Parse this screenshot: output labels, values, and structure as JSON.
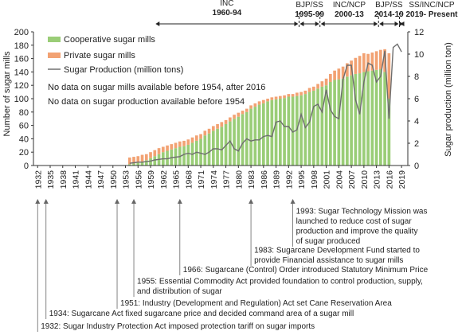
{
  "chart_data": {
    "type": "bar",
    "title": "",
    "xlabel": "",
    "ylabel": "Number of sugar mills",
    "y2label": "Sugar production (million ton)",
    "ylim": [
      0,
      200
    ],
    "y2lim": [
      0,
      12
    ],
    "yticks": [
      0,
      20,
      40,
      60,
      80,
      100,
      120,
      140,
      160,
      180,
      200
    ],
    "y2ticks": [
      0,
      2,
      4,
      6,
      8,
      10,
      12
    ],
    "xticks": [
      "1932",
      "1935",
      "1938",
      "1941",
      "1944",
      "1947",
      "1950",
      "1953",
      "1956",
      "1959",
      "1962",
      "1965",
      "1968",
      "1971",
      "1974",
      "1977",
      "1980",
      "1983",
      "1986",
      "1989",
      "1992",
      "1995",
      "1998",
      "2001",
      "2004",
      "2007",
      "2010",
      "2013",
      "2016",
      "2019"
    ],
    "x": [
      1954,
      1955,
      1956,
      1957,
      1958,
      1959,
      1960,
      1961,
      1962,
      1963,
      1964,
      1965,
      1966,
      1967,
      1968,
      1969,
      1970,
      1971,
      1972,
      1973,
      1974,
      1975,
      1976,
      1977,
      1978,
      1979,
      1980,
      1981,
      1982,
      1983,
      1984,
      1985,
      1986,
      1987,
      1988,
      1989,
      1990,
      1991,
      1992,
      1993,
      1994,
      1995,
      1996,
      1997,
      1998,
      1999,
      2000,
      2001,
      2002,
      2003,
      2004,
      2005,
      2006,
      2007,
      2008,
      2009,
      2010,
      2011,
      2012,
      2013,
      2014,
      2015,
      2016
    ],
    "series": [
      {
        "name": "Cooperative sugar mills",
        "kind": "bar",
        "color": "#9ACD77",
        "values": [
          2,
          3,
          4,
          6,
          8,
          11,
          14,
          17,
          20,
          22,
          24,
          26,
          28,
          29,
          31,
          34,
          37,
          40,
          45,
          48,
          52,
          55,
          58,
          62,
          66,
          70,
          73,
          77,
          80,
          85,
          88,
          91,
          93,
          96,
          98,
          99,
          100,
          101,
          103,
          103,
          104,
          105,
          107,
          110,
          112,
          115,
          118,
          120,
          125,
          128,
          129,
          130,
          133,
          135,
          137,
          138,
          140,
          141,
          142,
          143,
          144,
          140,
          100
        ]
      },
      {
        "name": "Private sugar mills",
        "kind": "bar",
        "color": "#F2A273",
        "values": [
          10,
          10,
          10,
          10,
          9,
          9,
          9,
          9,
          8,
          8,
          8,
          8,
          8,
          8,
          8,
          8,
          8,
          7,
          7,
          7,
          7,
          7,
          7,
          6,
          6,
          6,
          6,
          5,
          5,
          5,
          5,
          5,
          5,
          4,
          4,
          4,
          4,
          4,
          4,
          4,
          5,
          5,
          5,
          6,
          6,
          7,
          8,
          10,
          12,
          14,
          16,
          18,
          20,
          22,
          24,
          26,
          28,
          26,
          27,
          28,
          29,
          34,
          68
        ]
      },
      {
        "name": "Sugar Production (million tons)",
        "kind": "line",
        "axis": "right",
        "color": "#7a7a7a",
        "values": [
          0.2,
          0.25,
          0.3,
          0.3,
          0.35,
          0.4,
          0.5,
          0.55,
          0.6,
          0.6,
          0.7,
          0.75,
          0.8,
          1.0,
          1.1,
          1.0,
          1.2,
          1.1,
          1.0,
          1.2,
          1.5,
          1.5,
          1.4,
          1.8,
          2.2,
          1.5,
          1.3,
          2.0,
          2.4,
          2.2,
          2.3,
          2.3,
          2.6,
          2.7,
          2.6,
          3.9,
          4.0,
          3.5,
          3.5,
          3.0,
          3.2,
          4.6,
          3.4,
          3.9,
          5.3,
          5.5,
          4.8,
          6.8,
          5.0,
          4.4,
          4.2,
          7.7,
          9.0,
          9.0,
          5.9,
          4.6,
          7.5,
          9.2,
          9.0,
          7.5,
          8.0,
          10.3,
          4.2
        ]
      }
    ],
    "line_tail": {
      "x": [
        2016,
        2017,
        2018,
        2019
      ],
      "y": [
        4.2,
        10.6,
        10.9,
        10.2
      ]
    },
    "legend_position": "top-left",
    "notes": [
      "No data on sugar mills available before 1954, after 2016",
      "No data on sugar production available before 1954"
    ],
    "periods": [
      {
        "party": "INC",
        "years": "1960-94",
        "from": 1960,
        "to": 1994.5
      },
      {
        "party": "BJP/SS",
        "years": "1995-99",
        "from": 1994.5,
        "to": 1999.5
      },
      {
        "party": "INC/NCP",
        "years": "2000-13",
        "from": 1999.5,
        "to": 2013.5
      },
      {
        "party": "BJP/SS",
        "years": "2014-19",
        "from": 2013.5,
        "to": 2018.5
      },
      {
        "party": "SS/INC/NCP",
        "years": "2019- Present",
        "from": 2018.5,
        "to": 2019.6
      }
    ],
    "events": [
      {
        "year": 1993,
        "text": [
          "1993: Sugar Technology Mission was",
          "launched to reduce cost of sugar",
          "production and improve the quality",
          "of sugar produced"
        ]
      },
      {
        "year": 1983,
        "text": [
          "1983: Sugarcane Development Fund started to",
          "provide Financial assistance to sugar mills"
        ]
      },
      {
        "year": 1966,
        "text": [
          "1966: Sugarcane (Control) Order introduced Statutory Minimum Price"
        ]
      },
      {
        "year": 1955,
        "text": [
          "1955: Essential Commodity Act provided foundation to  control production, supply,",
          "and distribution of sugar"
        ]
      },
      {
        "year": 1951,
        "text": [
          "1951: Industry (Development and Regulation) Act set Cane Reservation Area"
        ]
      },
      {
        "year": 1934,
        "text": [
          "1934: Sugarcane Act fixed sugarcane price and decided command area of a sugar mill"
        ]
      },
      {
        "year": 1932,
        "text": [
          "1932: Sugar Industry Protection Act imposed protection tariff on sugar imports"
        ]
      }
    ]
  }
}
